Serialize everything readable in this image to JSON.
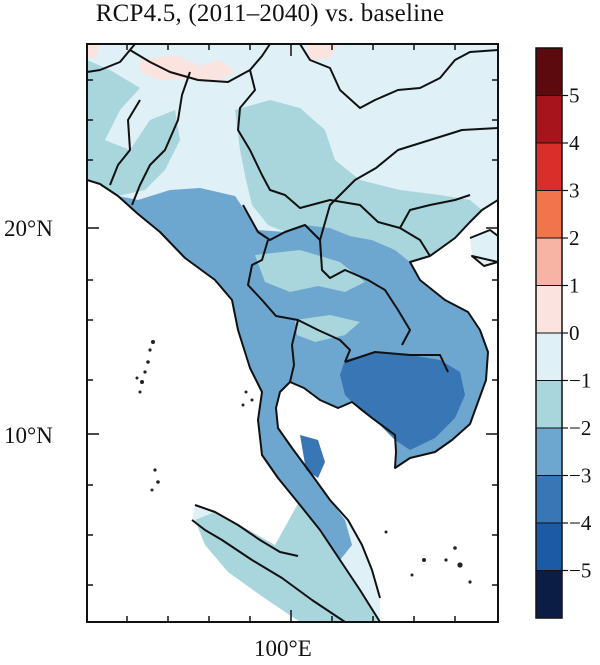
{
  "title": "RCP4.5, (2011–2040) vs. baseline",
  "map": {
    "lat_labels": [
      "20°N",
      "10°N"
    ],
    "lon_labels": [
      "100°E"
    ]
  },
  "colorbar": {
    "tick_labels": [
      "5",
      "4",
      "3",
      "2",
      "1",
      "0",
      "−1",
      "−2",
      "−3",
      "−4",
      "−5"
    ],
    "bin_colors_top_to_bottom": [
      "#5c0a0e",
      "#a8141c",
      "#d92e2a",
      "#f2744d",
      "#f7b3a3",
      "#fbe3df",
      "#dff0f7",
      "#a9d6dc",
      "#6da6ce",
      "#3976b5",
      "#1c5aa6",
      "#0c1d45"
    ]
  },
  "colors": {
    "land_light": "#dff0f7",
    "band_1_2": "#a9d6dc",
    "band_2_3": "#6da6ce",
    "band_3_4": "#3976b5",
    "warm_0_1": "#fbe3df",
    "border": "#111111"
  }
}
